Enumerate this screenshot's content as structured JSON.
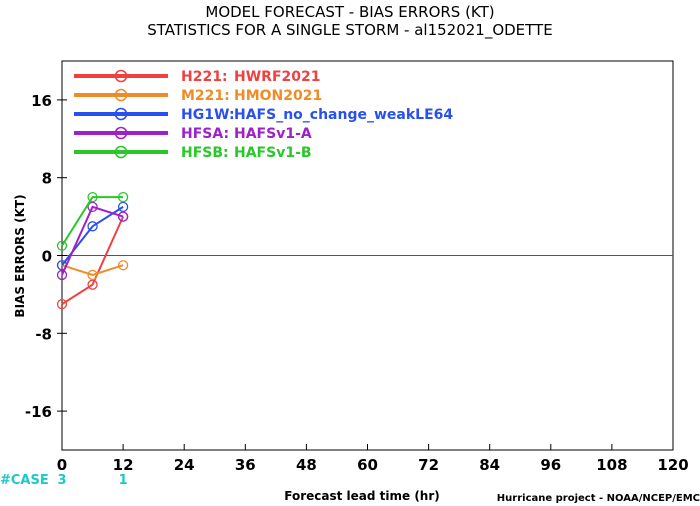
{
  "chart_data": {
    "type": "line",
    "title": "MODEL FORECAST - BIAS ERRORS (KT)",
    "subtitle": "STATISTICS FOR A SINGLE STORM - al152021_ODETTE",
    "xlabel": "Forecast lead time (hr)",
    "ylabel": "BIAS ERRORS (KT)",
    "xlim": [
      0,
      120
    ],
    "ylim": [
      -20,
      20
    ],
    "xticks": [
      "0",
      "12",
      "24",
      "36",
      "48",
      "60",
      "72",
      "84",
      "96",
      "108",
      "120"
    ],
    "yticks": [
      "16",
      "8",
      "0",
      "-8",
      "-16"
    ],
    "zero_line": true,
    "legend_position": "top-left",
    "case_label": "#CASE",
    "cases": [
      {
        "x": 0,
        "label": "3"
      },
      {
        "x": 12,
        "label": "1"
      }
    ],
    "credit": "Hurricane project - NOAA/NCEP/EMC",
    "series": [
      {
        "code": "H221:",
        "name": "HWRF2021",
        "color": "#f04040",
        "x": [
          0,
          6,
          12
        ],
        "y": [
          -5,
          -3,
          4
        ]
      },
      {
        "code": "M221:",
        "name": "HMON2021",
        "color": "#f08c28",
        "x": [
          0,
          6,
          12
        ],
        "y": [
          -1,
          -2,
          -1
        ]
      },
      {
        "code": "HG1W:",
        "name": "HAFS_no_change_weakLE64",
        "color": "#2850f0",
        "x": [
          0,
          6,
          12
        ],
        "y": [
          -1,
          3,
          5
        ]
      },
      {
        "code": "HFSA:",
        "name": "HAFSv1-A",
        "color": "#a020c8",
        "x": [
          0,
          6,
          12
        ],
        "y": [
          -2,
          5,
          4
        ]
      },
      {
        "code": "HFSB:",
        "name": "HAFSv1-B",
        "color": "#28c828",
        "x": [
          0,
          6,
          12
        ],
        "y": [
          1,
          6,
          6
        ]
      }
    ]
  }
}
